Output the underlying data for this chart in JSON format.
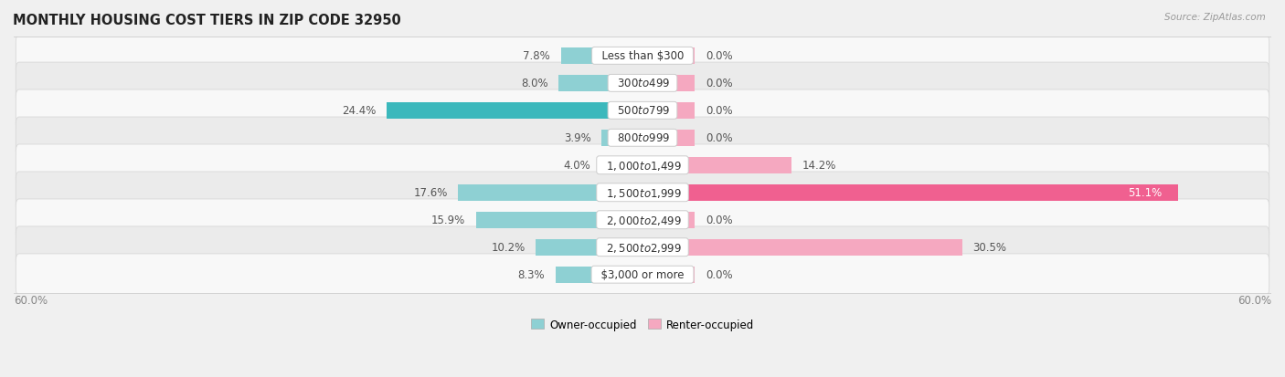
{
  "title": "MONTHLY HOUSING COST TIERS IN ZIP CODE 32950",
  "source": "Source: ZipAtlas.com",
  "categories": [
    "Less than $300",
    "$300 to $499",
    "$500 to $799",
    "$800 to $999",
    "$1,000 to $1,499",
    "$1,500 to $1,999",
    "$2,000 to $2,499",
    "$2,500 to $2,999",
    "$3,000 or more"
  ],
  "owner_values": [
    7.8,
    8.0,
    24.4,
    3.9,
    4.0,
    17.6,
    15.9,
    10.2,
    8.3
  ],
  "renter_values": [
    0.0,
    0.0,
    0.0,
    0.0,
    14.2,
    51.1,
    0.0,
    30.5,
    0.0
  ],
  "owner_color_light": "#8ed0d3",
  "owner_color_dark": "#3bb8bc",
  "renter_color_light": "#f5a8c0",
  "renter_color_dark": "#f06090",
  "axis_limit": 60.0,
  "background_color": "#f0f0f0",
  "row_bg_even": "#f8f8f8",
  "row_bg_odd": "#ebebeb",
  "legend_owner": "Owner-occupied",
  "legend_renter": "Renter-occupied",
  "title_fontsize": 10.5,
  "label_fontsize": 8.5,
  "bar_height": 0.6,
  "category_fontsize": 8.5,
  "renter_zero_bar": 5.0
}
